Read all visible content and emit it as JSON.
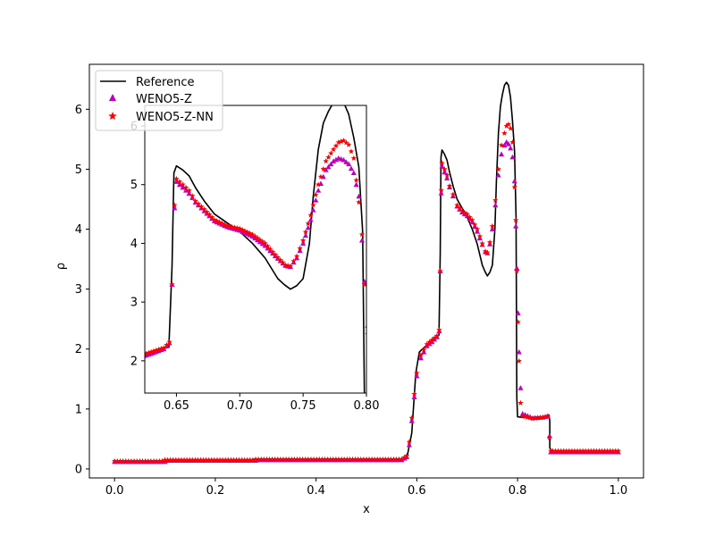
{
  "chart_data": {
    "type": "line",
    "xlabel": "x",
    "ylabel": "ρ",
    "xlim": [
      -0.05,
      1.05
    ],
    "ylim": [
      -0.15,
      6.75
    ],
    "xticks": [
      0.0,
      0.2,
      0.4,
      0.6,
      0.8,
      1.0
    ],
    "xtick_labels": [
      "0.0",
      "0.2",
      "0.4",
      "0.6",
      "0.8",
      "1.0"
    ],
    "yticks": [
      0,
      1,
      2,
      3,
      4,
      5,
      6
    ],
    "ytick_labels": [
      "0",
      "1",
      "2",
      "3",
      "4",
      "5",
      "6"
    ],
    "legend_position": "top-left",
    "colors": {
      "reference": "#000000",
      "weno5z": "#bf00bf",
      "weno5znn": "#ff0000"
    },
    "series": [
      {
        "name": "Reference",
        "style": "line",
        "x": [
          0.0,
          0.1,
          0.1,
          0.28,
          0.28,
          0.5,
          0.58,
          0.59,
          0.598,
          0.605,
          0.615,
          0.622,
          0.63,
          0.638,
          0.644,
          0.6465,
          0.648,
          0.65,
          0.655,
          0.66,
          0.665,
          0.672,
          0.68,
          0.69,
          0.7,
          0.71,
          0.72,
          0.73,
          0.735,
          0.74,
          0.745,
          0.75,
          0.755,
          0.758,
          0.762,
          0.766,
          0.77,
          0.774,
          0.778,
          0.782,
          0.786,
          0.79,
          0.794,
          0.797,
          0.7985,
          0.8,
          0.81,
          0.83,
          0.85,
          0.862,
          0.864,
          0.864,
          0.87,
          1.0
        ],
        "y": [
          0.13,
          0.13,
          0.15,
          0.15,
          0.16,
          0.16,
          0.17,
          0.6,
          1.6,
          1.95,
          2.03,
          2.08,
          2.15,
          2.2,
          2.23,
          3.6,
          5.2,
          5.32,
          5.25,
          5.15,
          4.95,
          4.72,
          4.5,
          4.35,
          4.2,
          4.0,
          3.75,
          3.4,
          3.3,
          3.22,
          3.28,
          3.4,
          4.0,
          4.8,
          5.6,
          6.05,
          6.25,
          6.4,
          6.45,
          6.4,
          6.2,
          5.8,
          5.3,
          4.2,
          1.2,
          0.87,
          0.86,
          0.86,
          0.87,
          0.9,
          0.8,
          0.35,
          0.28,
          0.28
        ]
      },
      {
        "name": "WENO5-Z",
        "style": "marker-triangle",
        "x": [
          0.0,
          0.1,
          0.1,
          0.28,
          0.28,
          0.5,
          0.57,
          0.58,
          0.585,
          0.59,
          0.595,
          0.6,
          0.608,
          0.62,
          0.63,
          0.64,
          0.6445,
          0.6465,
          0.6485,
          0.65,
          0.655,
          0.66,
          0.665,
          0.672,
          0.68,
          0.69,
          0.7,
          0.71,
          0.72,
          0.73,
          0.736,
          0.74,
          0.745,
          0.75,
          0.756,
          0.762,
          0.768,
          0.774,
          0.778,
          0.782,
          0.786,
          0.79,
          0.794,
          0.7965,
          0.7985,
          0.801,
          0.803,
          0.806,
          0.81,
          0.83,
          0.85,
          0.86,
          0.8635,
          0.866,
          0.87,
          1.0
        ],
        "y": [
          0.12,
          0.12,
          0.14,
          0.14,
          0.15,
          0.15,
          0.15,
          0.2,
          0.4,
          0.8,
          1.2,
          1.55,
          1.85,
          2.05,
          2.12,
          2.2,
          2.3,
          3.3,
          4.6,
          5.05,
          4.95,
          4.85,
          4.7,
          4.55,
          4.38,
          4.28,
          4.22,
          4.12,
          3.96,
          3.74,
          3.62,
          3.6,
          3.75,
          4.0,
          4.4,
          4.9,
          5.25,
          5.4,
          5.45,
          5.42,
          5.35,
          5.2,
          4.8,
          4.05,
          3.35,
          2.6,
          1.95,
          1.35,
          0.92,
          0.85,
          0.86,
          0.88,
          0.55,
          0.28,
          0.28,
          0.28
        ]
      },
      {
        "name": "WENO5-Z-NN",
        "style": "marker-star",
        "x": [
          0.0,
          0.1,
          0.1,
          0.28,
          0.28,
          0.5,
          0.57,
          0.58,
          0.585,
          0.59,
          0.595,
          0.6,
          0.608,
          0.62,
          0.63,
          0.64,
          0.6445,
          0.6465,
          0.6485,
          0.65,
          0.655,
          0.66,
          0.665,
          0.672,
          0.68,
          0.69,
          0.7,
          0.71,
          0.72,
          0.73,
          0.736,
          0.74,
          0.745,
          0.75,
          0.756,
          0.762,
          0.768,
          0.774,
          0.778,
          0.782,
          0.786,
          0.79,
          0.794,
          0.7965,
          0.7985,
          0.801,
          0.803,
          0.806,
          0.81,
          0.83,
          0.85,
          0.86,
          0.8635,
          0.866,
          0.87,
          1.0
        ],
        "y": [
          0.13,
          0.13,
          0.15,
          0.15,
          0.16,
          0.16,
          0.16,
          0.22,
          0.45,
          0.85,
          1.25,
          1.6,
          1.9,
          2.08,
          2.15,
          2.22,
          2.32,
          3.3,
          4.65,
          5.1,
          5.0,
          4.9,
          4.72,
          4.58,
          4.4,
          4.3,
          4.25,
          4.15,
          4.0,
          3.76,
          3.63,
          3.61,
          3.78,
          4.05,
          4.48,
          5.0,
          5.4,
          5.6,
          5.72,
          5.75,
          5.68,
          5.45,
          4.7,
          4.15,
          3.3,
          2.45,
          1.8,
          1.1,
          0.88,
          0.84,
          0.86,
          0.88,
          0.52,
          0.3,
          0.3,
          0.3
        ]
      }
    ],
    "inset": {
      "xlim": [
        0.625,
        0.8
      ],
      "ylim": [
        1.45,
        6.35
      ],
      "xticks": [
        0.65,
        0.7,
        0.75,
        0.8
      ],
      "xtick_labels": [
        "0.65",
        "0.70",
        "0.75",
        "0.80"
      ],
      "yticks": [
        2,
        3,
        4,
        5,
        6
      ],
      "ytick_labels": [
        "2",
        "3",
        "4",
        "5",
        "6"
      ]
    }
  }
}
